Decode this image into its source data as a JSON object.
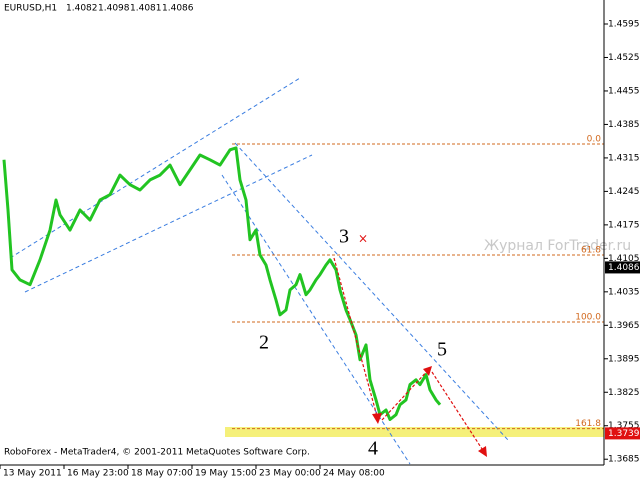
{
  "chart_data": {
    "type": "line",
    "symbol": "EURUSD,H1",
    "quote": [
      1.4082,
      1.4098,
      1.4081,
      1.4086
    ],
    "watermark": "Журнал ForTrader.ru",
    "footer": "RoboForex - MetaTrader4, © 2001-2011 MetaQuotes Software Corp.",
    "x": [
      2,
      4,
      6,
      10,
      15,
      20,
      25,
      28,
      30,
      35,
      40,
      45,
      50,
      55,
      60,
      65,
      70,
      75,
      80,
      85,
      90,
      95,
      100,
      105,
      110,
      115,
      118,
      120,
      123,
      125,
      128,
      130,
      133,
      135,
      138,
      140,
      143,
      145,
      148,
      150,
      153,
      155,
      158,
      160,
      163,
      165,
      168,
      170,
      173,
      175,
      178,
      180,
      183,
      185,
      188,
      190,
      193,
      195,
      198,
      200,
      203,
      205,
      208,
      210,
      213,
      215,
      218,
      220
    ],
    "series": [
      {
        "color": "#22c422",
        "values": [
          1.4311,
          1.4206,
          1.4081,
          1.406,
          1.405,
          1.4102,
          1.4164,
          1.4227,
          1.4196,
          1.4164,
          1.4206,
          1.4185,
          1.4227,
          1.4238,
          1.4279,
          1.4259,
          1.4248,
          1.4269,
          1.4279,
          1.43,
          1.4259,
          1.429,
          1.4321,
          1.4311,
          1.43,
          1.4332,
          1.4336,
          1.4269,
          1.4227,
          1.4144,
          1.4164,
          1.4112,
          1.4091,
          1.406,
          1.4018,
          1.3987,
          1.3997,
          1.4039,
          1.405,
          1.4071,
          1.4029,
          1.4039,
          1.406,
          1.4071,
          1.4091,
          1.4102,
          1.4081,
          1.4039,
          1.3997,
          1.3977,
          1.3945,
          1.3893,
          1.3924,
          1.3851,
          1.3809,
          1.3778,
          1.3788,
          1.3768,
          1.3778,
          1.3799,
          1.3809,
          1.3841,
          1.3851,
          1.3841,
          1.3862,
          1.383,
          1.3809,
          1.3799
        ]
      }
    ],
    "xlim": [
      0,
      302
    ],
    "xticks": [
      {
        "value": 0,
        "label": "13 May 2011"
      },
      {
        "value": 32,
        "label": "16 May 23:00"
      },
      {
        "value": 64,
        "label": "18 May 07:00"
      },
      {
        "value": 96,
        "label": "19 May 15:00"
      },
      {
        "value": 128,
        "label": "23 May 00:00"
      },
      {
        "value": 160,
        "label": "24 May 08:00"
      }
    ],
    "ylim": [
      1.3675,
      1.4641
    ],
    "yticks": [
      1.3685,
      1.3755,
      1.3825,
      1.3895,
      1.3965,
      1.4035,
      1.4105,
      1.4175,
      1.4245,
      1.4315,
      1.4385,
      1.4455,
      1.4525,
      1.4595
    ],
    "grid": false,
    "fib_levels": [
      {
        "value": 1.4344,
        "label": "0.0"
      },
      {
        "value": 1.4112,
        "label": "61.8"
      },
      {
        "value": 1.3972,
        "label": "100.0"
      },
      {
        "value": 1.3749,
        "label": "161.8"
      }
    ],
    "price_labels": [
      {
        "value": 1.4086,
        "color": "#000000"
      },
      {
        "value": 1.3739,
        "color": "#e01010"
      }
    ],
    "wave_labels": [
      "2",
      "3",
      "4",
      "5"
    ]
  }
}
